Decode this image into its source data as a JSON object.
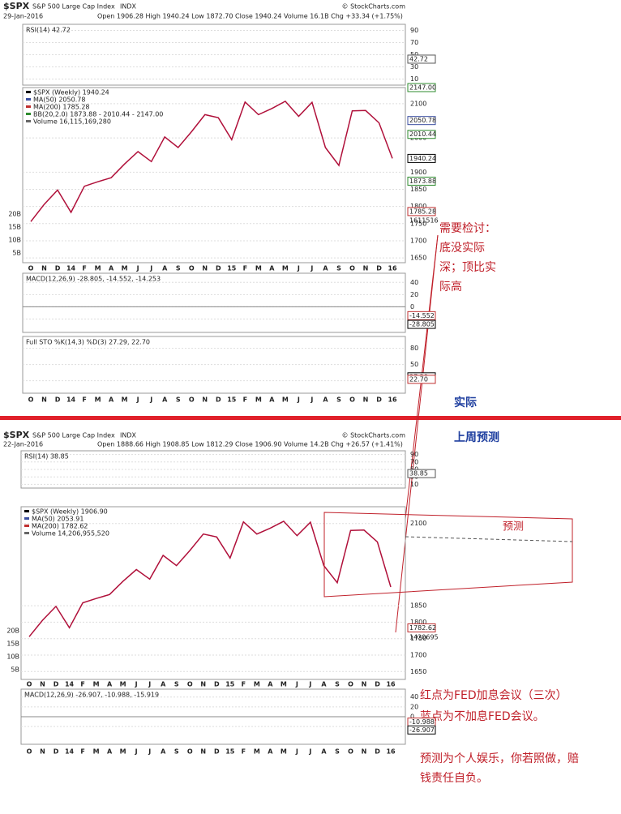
{
  "charts": [
    {
      "header": {
        "symbol": "$SPX",
        "name": "S&P 500 Large Cap Index",
        "exchange": "INDX",
        "date": "29-Jan-2016",
        "quote": "Open 1906.28  High 1940.24  Low 1872.70  Close 1940.24  Volume 16.1B  Chg +33.34 (+1.75%)",
        "credit": "© StockCharts.com"
      },
      "rsi": {
        "label": "RSI(14) 42.72",
        "ylim": [
          0,
          100
        ],
        "yticks": [
          90,
          70,
          50,
          30,
          10
        ],
        "levels": [
          {
            "value": 42.72,
            "color": "#555555"
          }
        ]
      },
      "price": {
        "legend": [
          {
            "text": "$SPX (Weekly) 1940.24",
            "color": "#000000"
          },
          {
            "text": "MA(50) 2050.78",
            "color": "#3a4ea0"
          },
          {
            "text": "MA(200) 1785.28",
            "color": "#c03030"
          },
          {
            "text": "BB(20,2.0) 1873.88 - 2010.44 - 2147.00",
            "color": "#2e8b2e"
          },
          {
            "text": "Volume 16,115,169,280",
            "color": "#666666"
          }
        ],
        "ylim": [
          1636,
          2147
        ],
        "yticks": [
          2100,
          2000,
          1900,
          1850,
          1800,
          1750,
          1700,
          1650
        ],
        "levels": [
          {
            "value": 2147,
            "label": "2147.00",
            "color": "#2e8b2e"
          },
          {
            "value": 2050.78,
            "color": "#3a4ea0"
          },
          {
            "value": 2010.44,
            "color": "#2e8b2e"
          },
          {
            "value": 1940.24,
            "color": "#000000"
          },
          {
            "value": 1873.88,
            "color": "#2e8b2e"
          },
          {
            "value": 1785.28,
            "color": "#c03030"
          }
        ],
        "volume_last": "1611516",
        "volume_ticks": [
          "20B",
          "15B",
          "10B",
          "5B"
        ],
        "color": "#b0103a",
        "months": [
          "O",
          "N",
          "D",
          "14",
          "F",
          "M",
          "A",
          "M",
          "J",
          "J",
          "A",
          "S",
          "O",
          "N",
          "D",
          "15",
          "F",
          "M",
          "A",
          "M",
          "J",
          "J",
          "A",
          "S",
          "O",
          "N",
          "D",
          "16"
        ],
        "close": [
          1756,
          1806,
          1848,
          1783,
          1859,
          1872,
          1884,
          1924,
          1960,
          1931,
          2003,
          1972,
          2018,
          2068,
          2059,
          1995,
          2105,
          2068,
          2086,
          2107,
          2063,
          2104,
          1972,
          1920,
          2079,
          2080,
          2044,
          1940.24
        ]
      },
      "macd": {
        "label": "MACD(12,26,9) -28.805, -14.552, -14.253",
        "ylim": [
          -42,
          55
        ],
        "yticks": [
          40,
          20,
          0,
          -20
        ],
        "levels": [
          {
            "value": -14.552,
            "color": "#c03030"
          },
          {
            "value": -28.805,
            "color": "#000000"
          }
        ]
      },
      "sto": {
        "label": "Full STO %K(14,3) %D(3) 27.29, 22.70",
        "ylim": [
          -3,
          102
        ],
        "yticks": [
          80,
          50,
          20
        ],
        "levels": [
          {
            "value": 27.29,
            "color": "#000000"
          },
          {
            "value": 22.7,
            "label": "22.70",
            "color": "#c03030"
          }
        ]
      }
    },
    {
      "header": {
        "symbol": "$SPX",
        "name": "S&P 500 Large Cap Index",
        "exchange": "INDX",
        "date": "22-Jan-2016",
        "quote": "Open 1888.66  High 1908.85  Low 1812.29  Close 1906.90  Volume 14.2B  Chg +26.57 (+1.41%)",
        "credit": "© StockCharts.com"
      },
      "rsi": {
        "label": "RSI(14) 38.85",
        "ylim": [
          0,
          100
        ],
        "yticks": [
          90,
          70,
          50,
          30,
          10
        ],
        "levels": [
          {
            "value": 38.85,
            "color": "#555555"
          }
        ]
      },
      "price": {
        "legend": [
          {
            "text": "$SPX (Weekly) 1906.90",
            "color": "#000000"
          },
          {
            "text": "MA(50) 2053.91",
            "color": "#3a4ea0"
          },
          {
            "text": "MA(200) 1782.62",
            "color": "#c03030"
          },
          {
            "text": "Volume 14,206,955,520",
            "color": "#666666"
          }
        ],
        "ylim": [
          1626,
          2151
        ],
        "yticks": [
          2100,
          1850,
          1800,
          1750,
          1700,
          1650
        ],
        "levels": [
          {
            "value": 1782.62,
            "color": "#c03030"
          }
        ],
        "volume_last": "1420695",
        "volume_ticks": [
          "20B",
          "15B",
          "10B",
          "5B"
        ],
        "color": "#b0103a",
        "months": [
          "O",
          "N",
          "D",
          "14",
          "F",
          "M",
          "A",
          "M",
          "J",
          "J",
          "A",
          "S",
          "O",
          "N",
          "D",
          "15",
          "F",
          "M",
          "A",
          "M",
          "J",
          "J",
          "A",
          "S",
          "O",
          "N",
          "D",
          "16"
        ],
        "close": [
          1756,
          1806,
          1848,
          1783,
          1859,
          1872,
          1884,
          1924,
          1960,
          1931,
          2003,
          1972,
          2018,
          2068,
          2059,
          1995,
          2105,
          2068,
          2086,
          2107,
          2063,
          2104,
          1972,
          1920,
          2079,
          2080,
          2044,
          1906.9
        ],
        "forecast_label": "预测"
      },
      "macd": {
        "label": "MACD(12,26,9) -26.907, -10.988, -15.919",
        "ylim": [
          -56,
          56
        ],
        "yticks": [
          40,
          20,
          0,
          -20
        ],
        "levels": [
          {
            "value": -10.988,
            "color": "#c03030"
          },
          {
            "value": -26.907,
            "color": "#000000"
          }
        ]
      }
    }
  ],
  "annotations": {
    "review": [
      "需要检讨：",
      "底没实际",
      "深；顶比实",
      "际高"
    ],
    "actual": "实际",
    "last_week_forecast": "上周预测",
    "notes": [
      "红点为FED加息会议（三次）",
      "蓝点为不加息FED会议。",
      "预测为个人娱乐，你若照做，赔",
      "钱责任自负。"
    ]
  }
}
